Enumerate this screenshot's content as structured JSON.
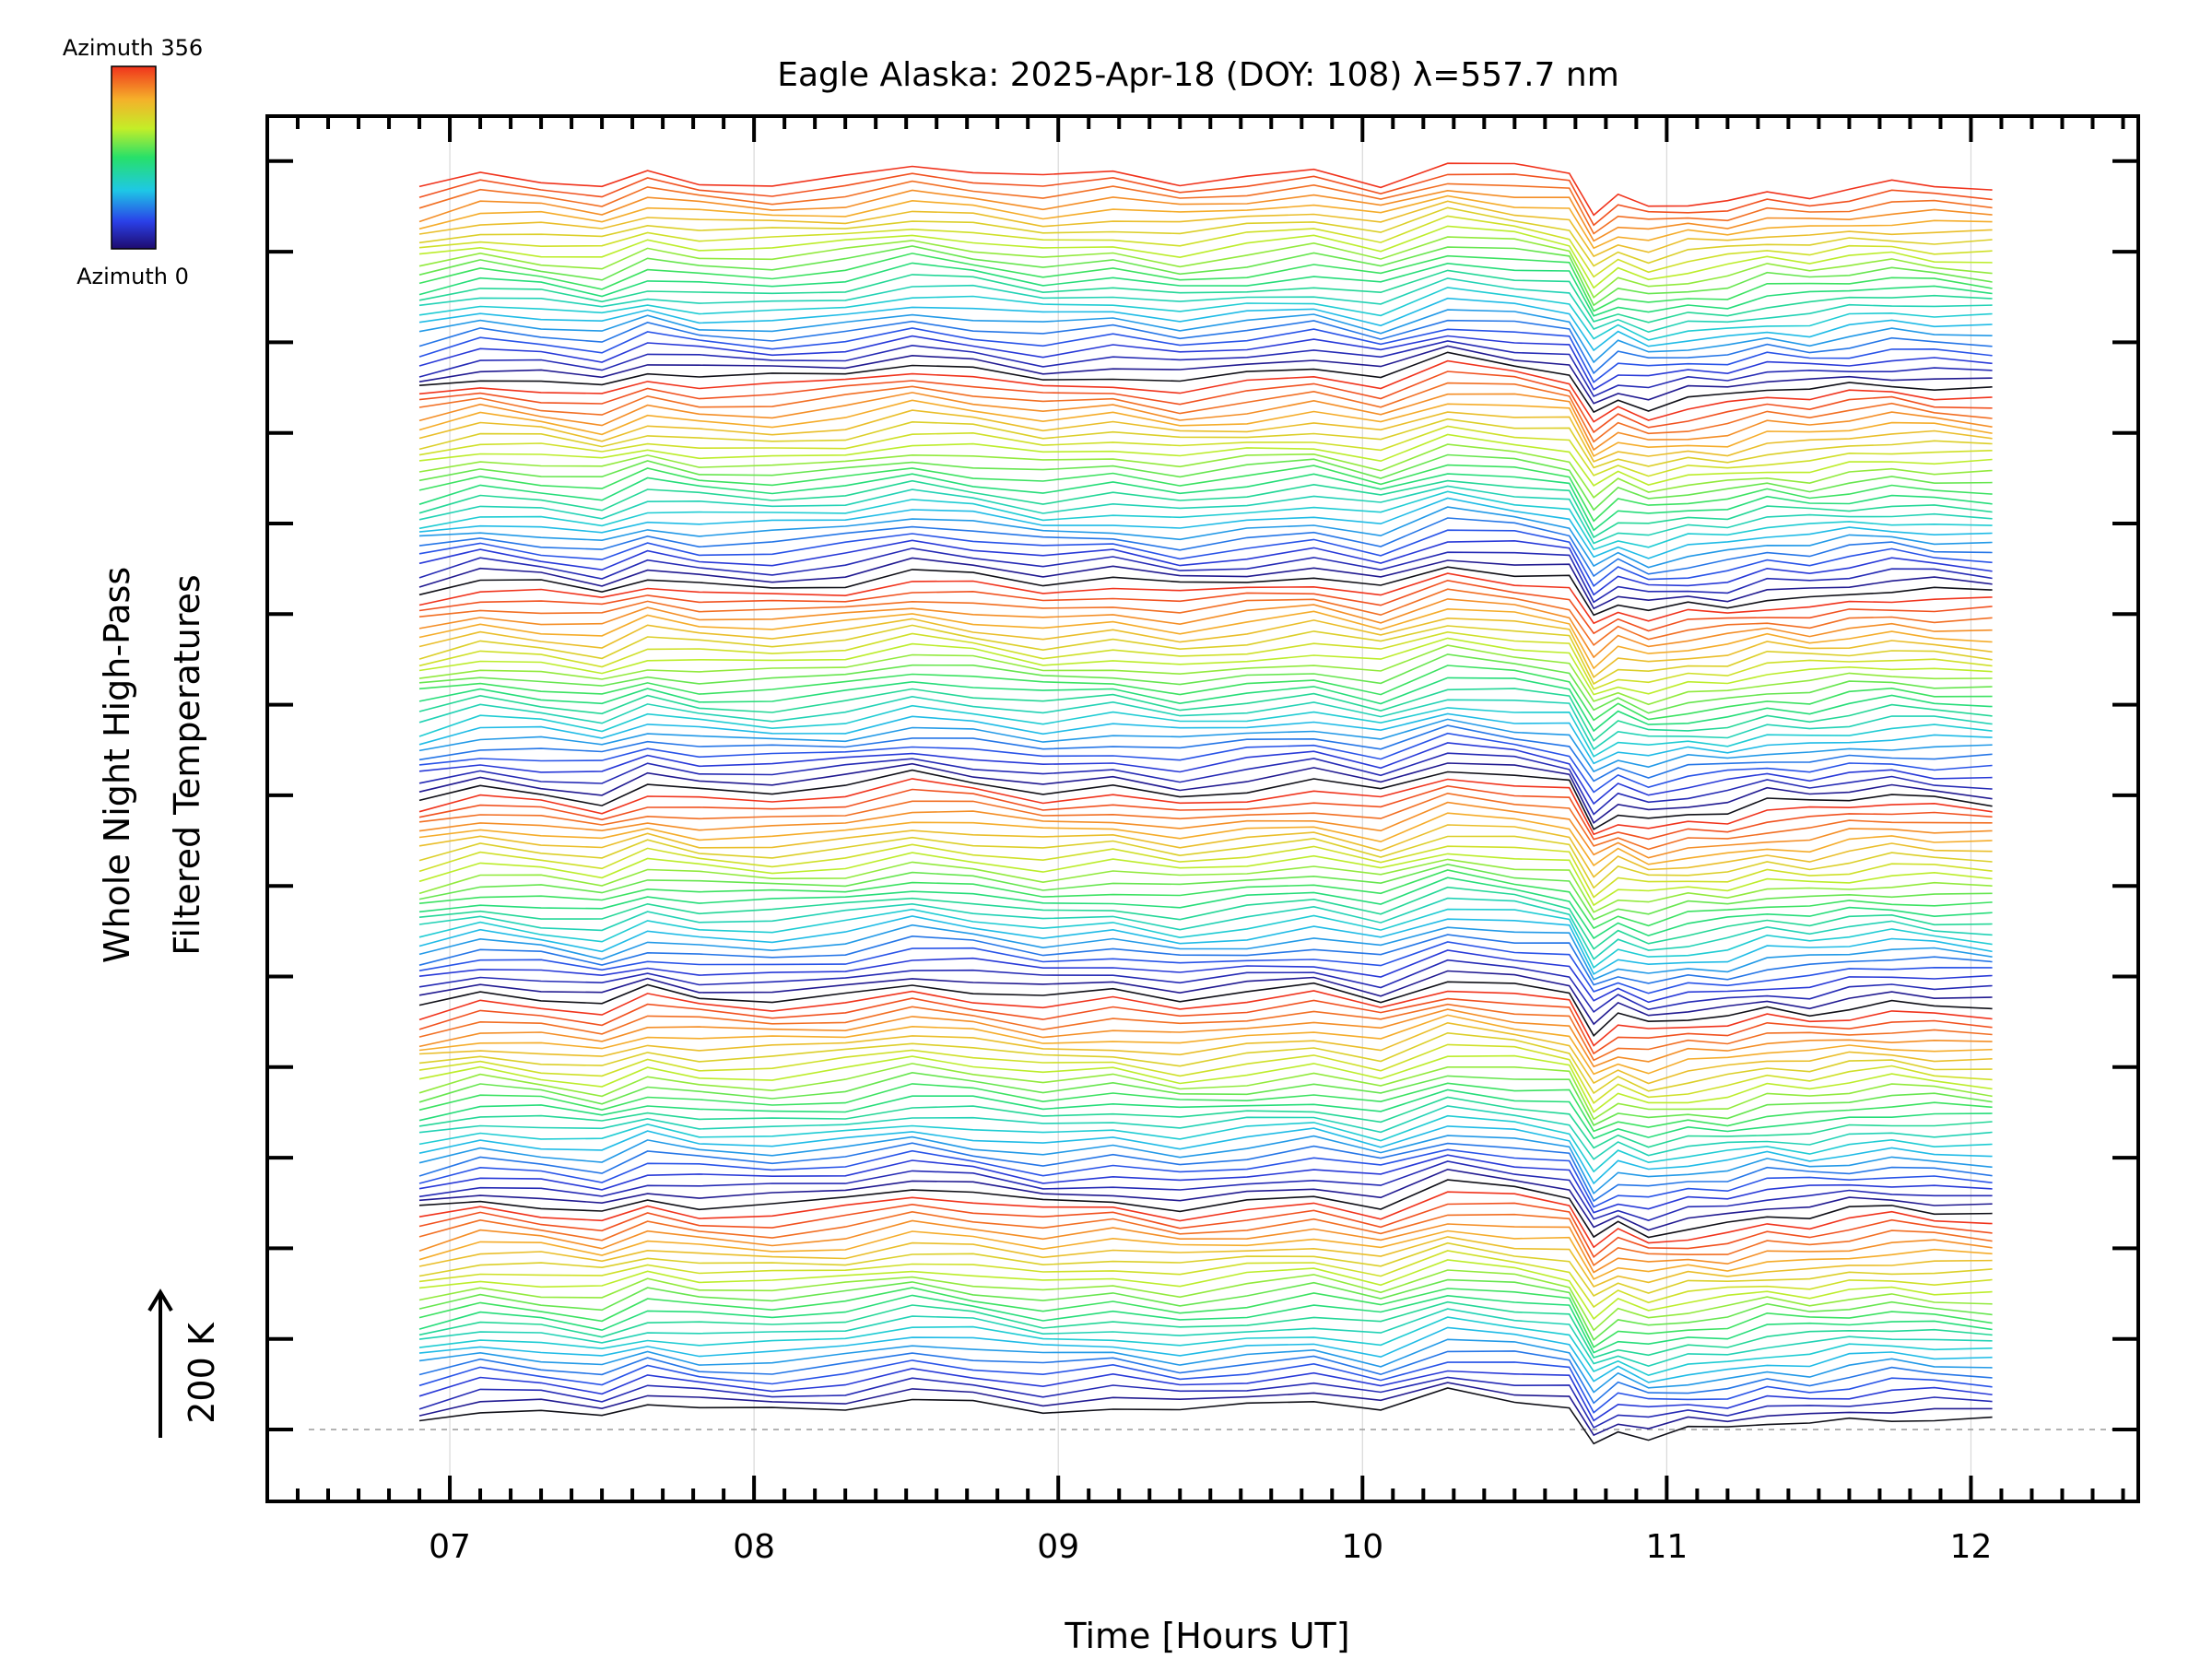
{
  "chart_data": {
    "type": "line",
    "title": "Eagle Alaska: 2025-Apr-18 (DOY: 108) λ=557.7 nm",
    "xlabel": "Time [Hours UT]",
    "ylabel_line1": "Whole Night High-Pass",
    "ylabel_line2": "Filtered Temperatures",
    "scale_label": "200 K",
    "xlim": [
      6.4,
      12.55
    ],
    "x_ticks": [
      7,
      8,
      9,
      10,
      11,
      12
    ],
    "x_tick_labels": [
      "07",
      "08",
      "09",
      "10",
      "11",
      "12"
    ],
    "colorbar": {
      "top_label": "Azimuth 356",
      "bottom_label": "Azimuth 0",
      "min": 0,
      "max": 356
    },
    "grid": true,
    "n_groups": 6,
    "series_per_group": 24,
    "times": [
      6.9,
      7.1,
      7.3,
      7.5,
      7.65,
      7.82,
      8.06,
      8.3,
      8.52,
      8.72,
      8.95,
      9.18,
      9.4,
      9.62,
      9.84,
      10.06,
      10.28,
      10.5,
      10.68,
      10.76,
      10.84,
      10.94,
      11.07,
      11.2,
      11.33,
      11.47,
      11.6,
      11.74,
      11.88,
      12.07
    ],
    "mean_profile": [
      15,
      2,
      8,
      16,
      -2,
      6,
      8,
      2,
      -12,
      -5,
      6,
      0,
      10,
      2,
      -6,
      8,
      -18,
      -10,
      -2,
      48,
      30,
      40,
      32,
      30,
      20,
      22,
      16,
      12,
      15,
      18
    ]
  }
}
